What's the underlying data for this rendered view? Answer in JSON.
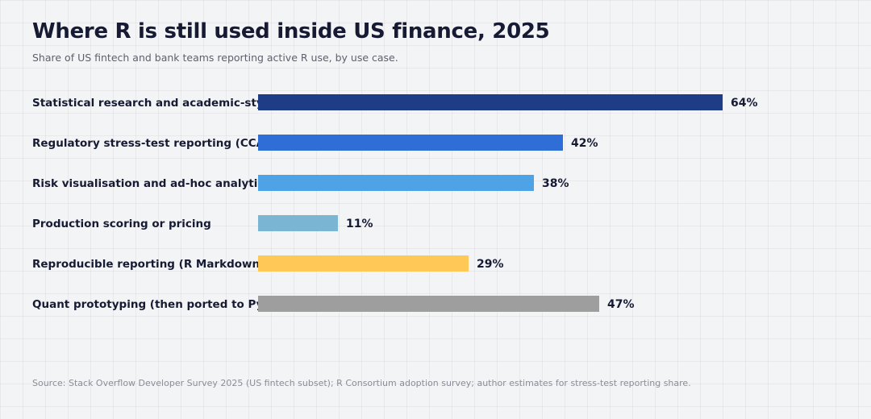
{
  "chart_data": {
    "type": "bar",
    "orientation": "horizontal",
    "title": "Where R is still used inside US finance, 2025",
    "subtitle": "Share of US fintech and bank teams reporting active R use, by use case.",
    "categories": [
      "Statistical research and academic-style modelling",
      "Regulatory stress-test reporting (CCAR, DFAST)",
      "Risk visualisation and ad-hoc analytics",
      "Production scoring or pricing",
      "Reproducible reporting (R Markdown, Quarto)",
      "Quant prototyping (then ported to Python)"
    ],
    "values": [
      64,
      42,
      38,
      11,
      29,
      47
    ],
    "value_labels": [
      "64%",
      "42%",
      "38%",
      "11%",
      "29%",
      "47%"
    ],
    "unit": "%",
    "colors": [
      "#1f3d87",
      "#2e6ed6",
      "#4ea3e6",
      "#7ab5d3",
      "#ffc857",
      "#9e9e9e"
    ],
    "xlim": [
      0,
      100
    ],
    "grid": true,
    "legend": "none",
    "source": "Source: Stack Overflow Developer Survey 2025 (US fintech subset); R Consortium adoption survey; author estimates for stress-test reporting share."
  }
}
